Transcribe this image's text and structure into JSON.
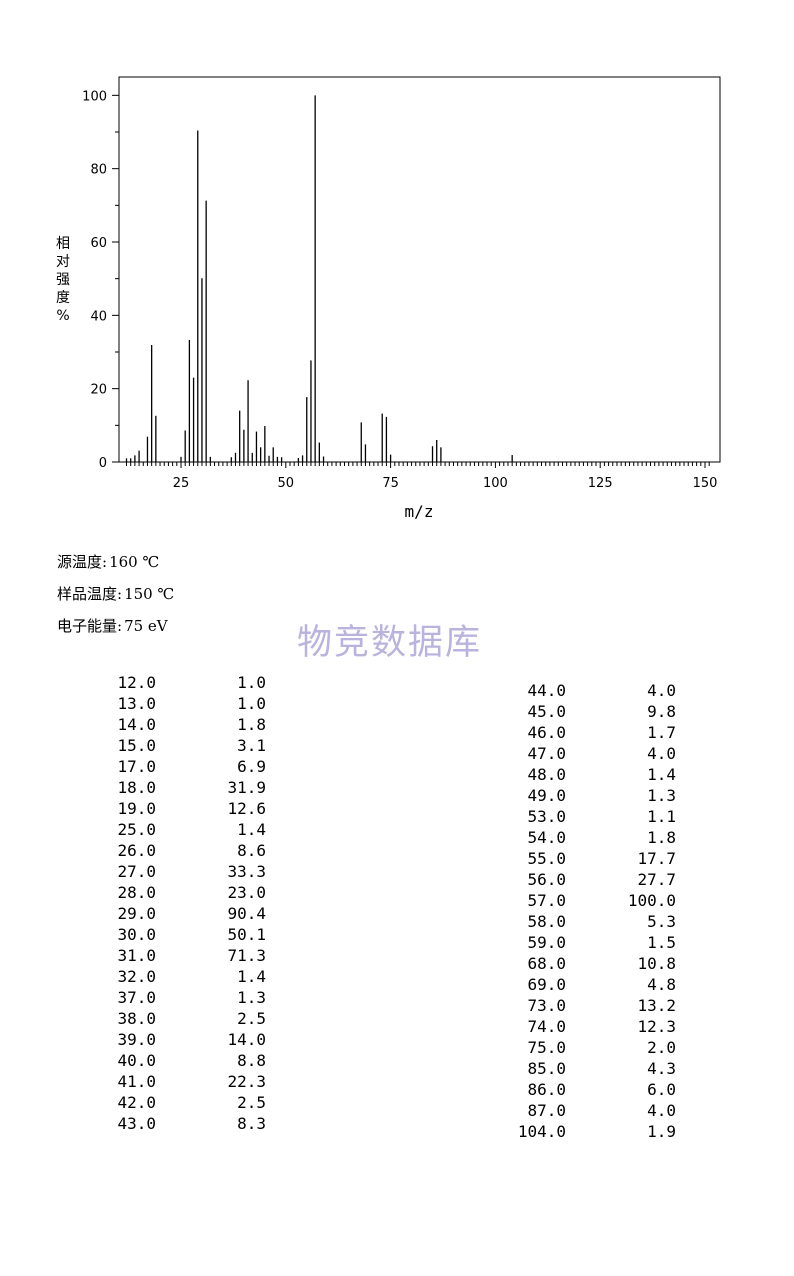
{
  "chart_data": {
    "type": "bar",
    "xlabel": "m/z",
    "ylabel": "相对强度%",
    "xlim": [
      10,
      152
    ],
    "ylim": [
      0,
      105
    ],
    "xticks": [
      25,
      50,
      75,
      100,
      125,
      150
    ],
    "yticks": [
      0,
      20,
      40,
      60,
      80,
      100
    ],
    "x": [
      12,
      13,
      14,
      15,
      17,
      18,
      19,
      25,
      26,
      27,
      28,
      29,
      30,
      31,
      32,
      37,
      38,
      39,
      40,
      41,
      42,
      43,
      44,
      45,
      46,
      47,
      48,
      49,
      53,
      54,
      55,
      56,
      57,
      58,
      59,
      68,
      69,
      73,
      74,
      75,
      85,
      86,
      87,
      104
    ],
    "values": [
      1.0,
      1.0,
      1.8,
      3.1,
      6.9,
      31.9,
      12.6,
      1.4,
      8.6,
      33.3,
      23.0,
      90.4,
      50.1,
      71.3,
      1.4,
      1.3,
      2.5,
      14.0,
      8.8,
      22.3,
      2.5,
      8.3,
      4.0,
      9.8,
      1.7,
      4.0,
      1.4,
      1.3,
      1.1,
      1.8,
      17.7,
      27.7,
      100.0,
      5.3,
      1.5,
      10.8,
      4.8,
      13.2,
      12.3,
      2.0,
      4.3,
      6.0,
      4.0,
      1.9
    ]
  },
  "conditions": {
    "source_temp_label": "源温度:",
    "source_temp_value": "160 ℃",
    "sample_temp_label": "样品温度:",
    "sample_temp_value": "150 ℃",
    "electron_energy_label": "电子能量:",
    "electron_energy_value": "75 eV"
  },
  "watermark": "物竞数据库",
  "peak_table": {
    "left": [
      {
        "mz": "12.0",
        "intensity": "1.0"
      },
      {
        "mz": "13.0",
        "intensity": "1.0"
      },
      {
        "mz": "14.0",
        "intensity": "1.8"
      },
      {
        "mz": "15.0",
        "intensity": "3.1"
      },
      {
        "mz": "17.0",
        "intensity": "6.9"
      },
      {
        "mz": "18.0",
        "intensity": "31.9"
      },
      {
        "mz": "19.0",
        "intensity": "12.6"
      },
      {
        "mz": "25.0",
        "intensity": "1.4"
      },
      {
        "mz": "26.0",
        "intensity": "8.6"
      },
      {
        "mz": "27.0",
        "intensity": "33.3"
      },
      {
        "mz": "28.0",
        "intensity": "23.0"
      },
      {
        "mz": "29.0",
        "intensity": "90.4"
      },
      {
        "mz": "30.0",
        "intensity": "50.1"
      },
      {
        "mz": "31.0",
        "intensity": "71.3"
      },
      {
        "mz": "32.0",
        "intensity": "1.4"
      },
      {
        "mz": "37.0",
        "intensity": "1.3"
      },
      {
        "mz": "38.0",
        "intensity": "2.5"
      },
      {
        "mz": "39.0",
        "intensity": "14.0"
      },
      {
        "mz": "40.0",
        "intensity": "8.8"
      },
      {
        "mz": "41.0",
        "intensity": "22.3"
      },
      {
        "mz": "42.0",
        "intensity": "2.5"
      },
      {
        "mz": "43.0",
        "intensity": "8.3"
      }
    ],
    "right": [
      {
        "mz": "44.0",
        "intensity": "4.0"
      },
      {
        "mz": "45.0",
        "intensity": "9.8"
      },
      {
        "mz": "46.0",
        "intensity": "1.7"
      },
      {
        "mz": "47.0",
        "intensity": "4.0"
      },
      {
        "mz": "48.0",
        "intensity": "1.4"
      },
      {
        "mz": "49.0",
        "intensity": "1.3"
      },
      {
        "mz": "53.0",
        "intensity": "1.1"
      },
      {
        "mz": "54.0",
        "intensity": "1.8"
      },
      {
        "mz": "55.0",
        "intensity": "17.7"
      },
      {
        "mz": "56.0",
        "intensity": "27.7"
      },
      {
        "mz": "57.0",
        "intensity": "100.0"
      },
      {
        "mz": "58.0",
        "intensity": "5.3"
      },
      {
        "mz": "59.0",
        "intensity": "1.5"
      },
      {
        "mz": "68.0",
        "intensity": "10.8"
      },
      {
        "mz": "69.0",
        "intensity": "4.8"
      },
      {
        "mz": "73.0",
        "intensity": "13.2"
      },
      {
        "mz": "74.0",
        "intensity": "12.3"
      },
      {
        "mz": "75.0",
        "intensity": "2.0"
      },
      {
        "mz": "85.0",
        "intensity": "4.3"
      },
      {
        "mz": "86.0",
        "intensity": "6.0"
      },
      {
        "mz": "87.0",
        "intensity": "4.0"
      },
      {
        "mz": "104.0",
        "intensity": "1.9"
      }
    ]
  }
}
